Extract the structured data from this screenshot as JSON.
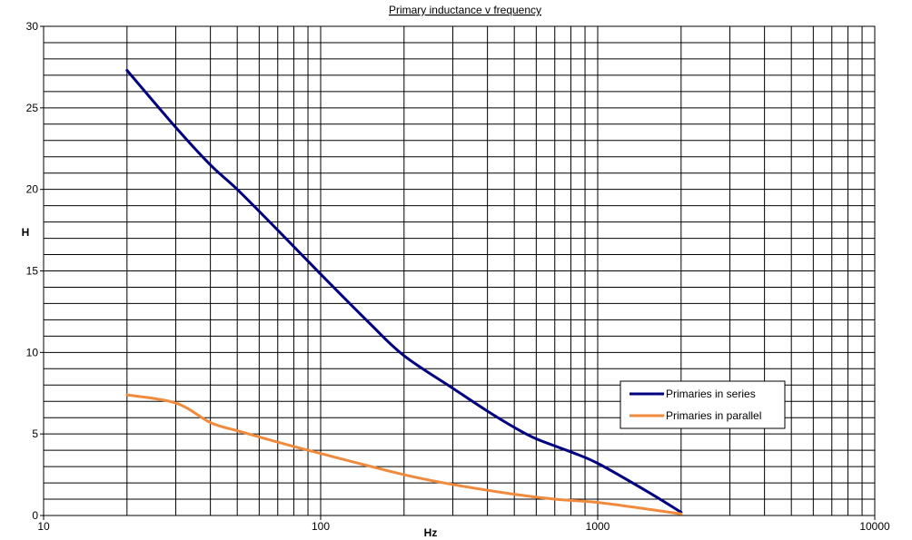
{
  "chart_data": {
    "type": "line",
    "title": "Primary inductance v frequency",
    "xlabel": "Hz",
    "ylabel": "H",
    "x_scale": "log",
    "xlim": [
      10,
      10000
    ],
    "ylim": [
      0,
      30
    ],
    "x_tick_labels": [
      "10",
      "100",
      "1000",
      "10000"
    ],
    "y_tick_labels": [
      "0",
      "5",
      "10",
      "15",
      "20",
      "25",
      "30"
    ],
    "y_minor_step": 1,
    "grid": true,
    "legend_position": "lower-right",
    "series": [
      {
        "name": "Primaries in series",
        "color": "#000080",
        "x": [
          20,
          30,
          40,
          50,
          70,
          100,
          150,
          200,
          300,
          400,
          500,
          600,
          800,
          1000,
          1500,
          2000
        ],
        "y": [
          27.3,
          23.8,
          21.5,
          20.0,
          17.5,
          14.8,
          11.8,
          9.8,
          7.8,
          6.4,
          5.4,
          4.7,
          3.9,
          3.2,
          1.5,
          0.2
        ]
      },
      {
        "name": "Primaries in parallel",
        "color": "#F08A3C",
        "x": [
          20,
          30,
          40,
          50,
          70,
          100,
          200,
          300,
          500,
          700,
          1000,
          1500,
          2000
        ],
        "y": [
          7.4,
          6.9,
          5.7,
          5.2,
          4.5,
          3.8,
          2.5,
          1.9,
          1.3,
          1.0,
          0.8,
          0.4,
          0.1
        ]
      }
    ]
  }
}
